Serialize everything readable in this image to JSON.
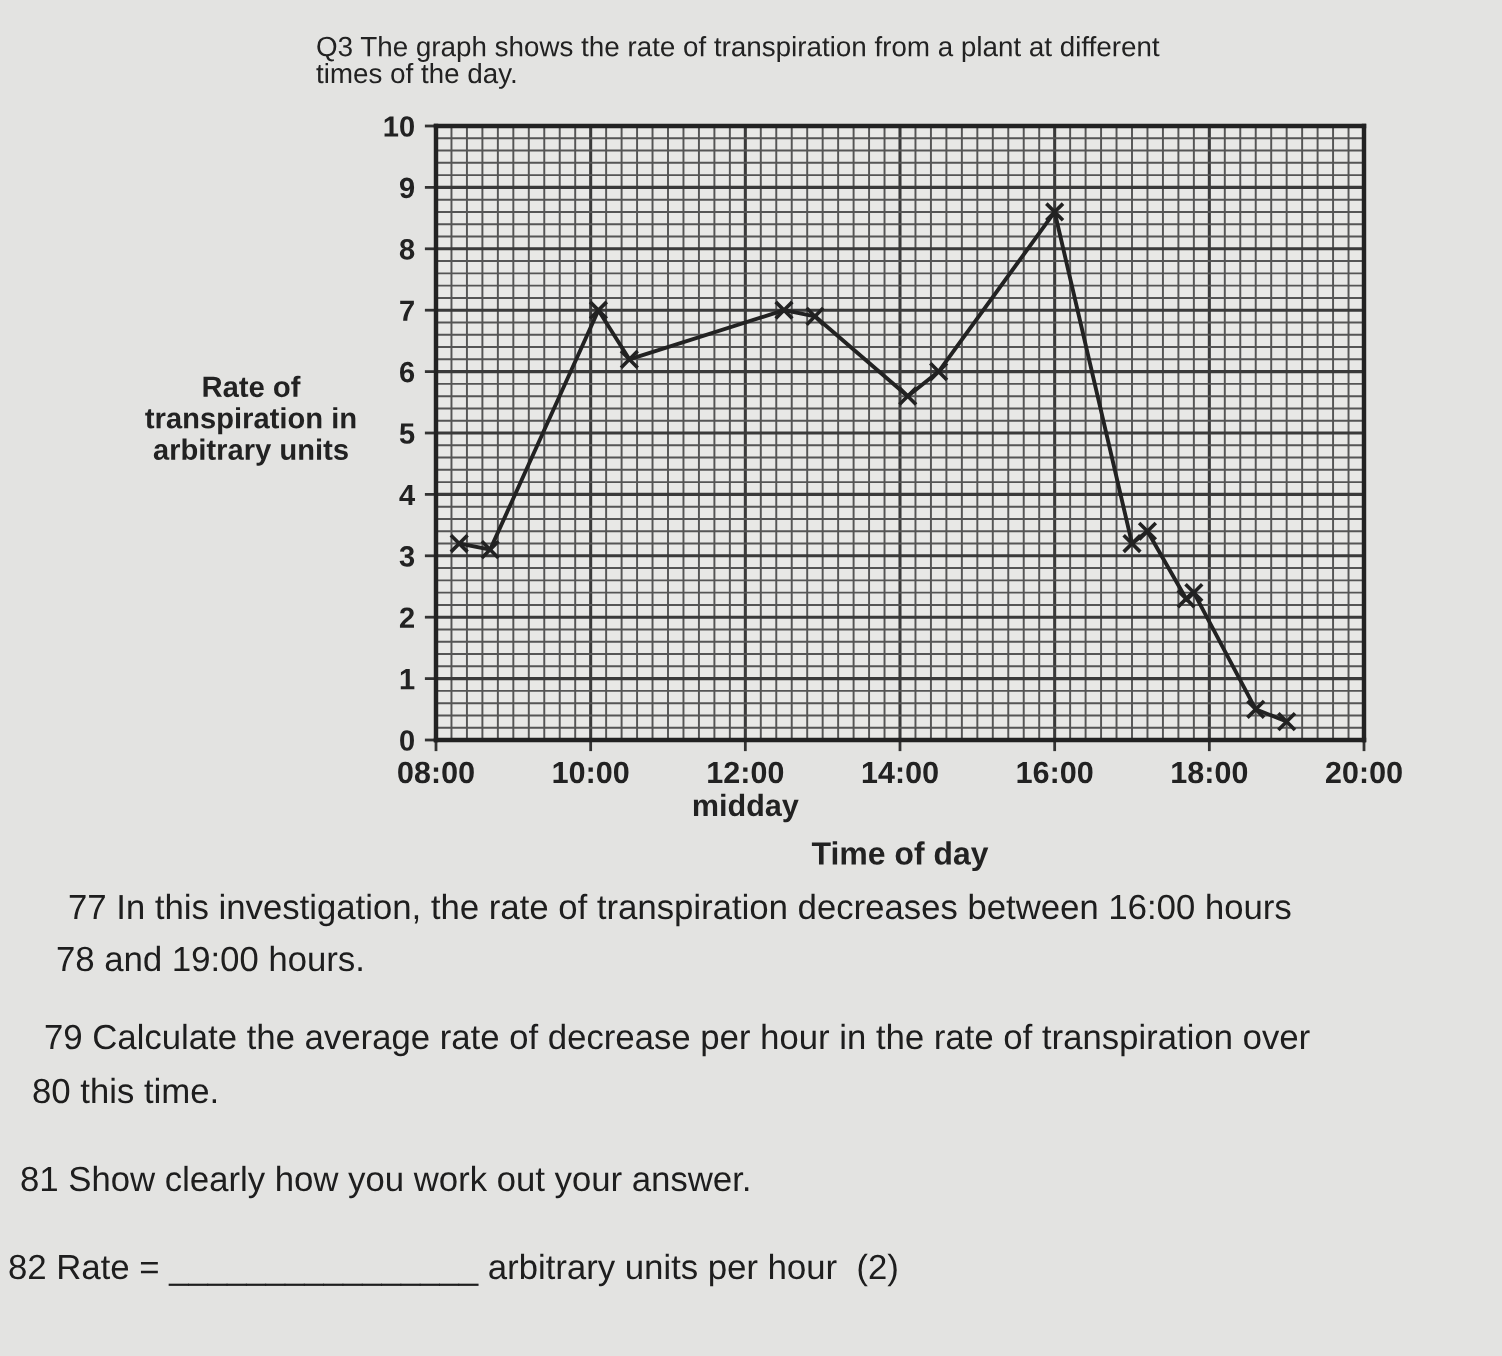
{
  "chart_data": {
    "type": "line",
    "title": "Q3 The graph shows the rate of transpiration from a plant at different\ntimes of the day.",
    "xlabel": "Time of day",
    "ylabel": "Rate of\ntranspiration in\narbitrary units",
    "x": [
      8.3,
      8.7,
      10.1,
      10.5,
      12.5,
      12.9,
      14.1,
      14.5,
      16.0,
      17.0,
      17.2,
      17.7,
      17.8,
      18.6,
      19.0
    ],
    "series": [
      {
        "color": "#222222",
        "values": [
          3.2,
          3.1,
          7.0,
          6.2,
          7.0,
          6.9,
          5.6,
          6.0,
          8.6,
          3.2,
          3.4,
          2.3,
          2.4,
          0.5,
          0.3
        ]
      }
    ],
    "xlim": [
      8,
      20
    ],
    "xticks": [
      {
        "value": 8,
        "label": "08:00"
      },
      {
        "value": 10,
        "label": "10:00"
      },
      {
        "value": 12,
        "label": "12:00\nmidday"
      },
      {
        "value": 14,
        "label": "14:00"
      },
      {
        "value": 16,
        "label": "16:00"
      },
      {
        "value": 18,
        "label": "18:00"
      },
      {
        "value": 20,
        "label": "20:00"
      }
    ],
    "ylim": [
      0,
      10
    ],
    "yticks": [
      0,
      1,
      2,
      3,
      4,
      5,
      6,
      7,
      8,
      9,
      10
    ],
    "grid": true,
    "marker": "cross",
    "line_style": "solid",
    "annotations": [
      "77 In this investigation, the rate of transpiration decreases between 16:00 hours",
      "78 and 19:00 hours.",
      "79 Calculate the average rate of decrease per hour in the rate of transpiration over",
      "80 this time.",
      "81 Show clearly how you work out your answer.",
      "82 Rate = ________________ arbitrary units per hour  (2)"
    ]
  }
}
